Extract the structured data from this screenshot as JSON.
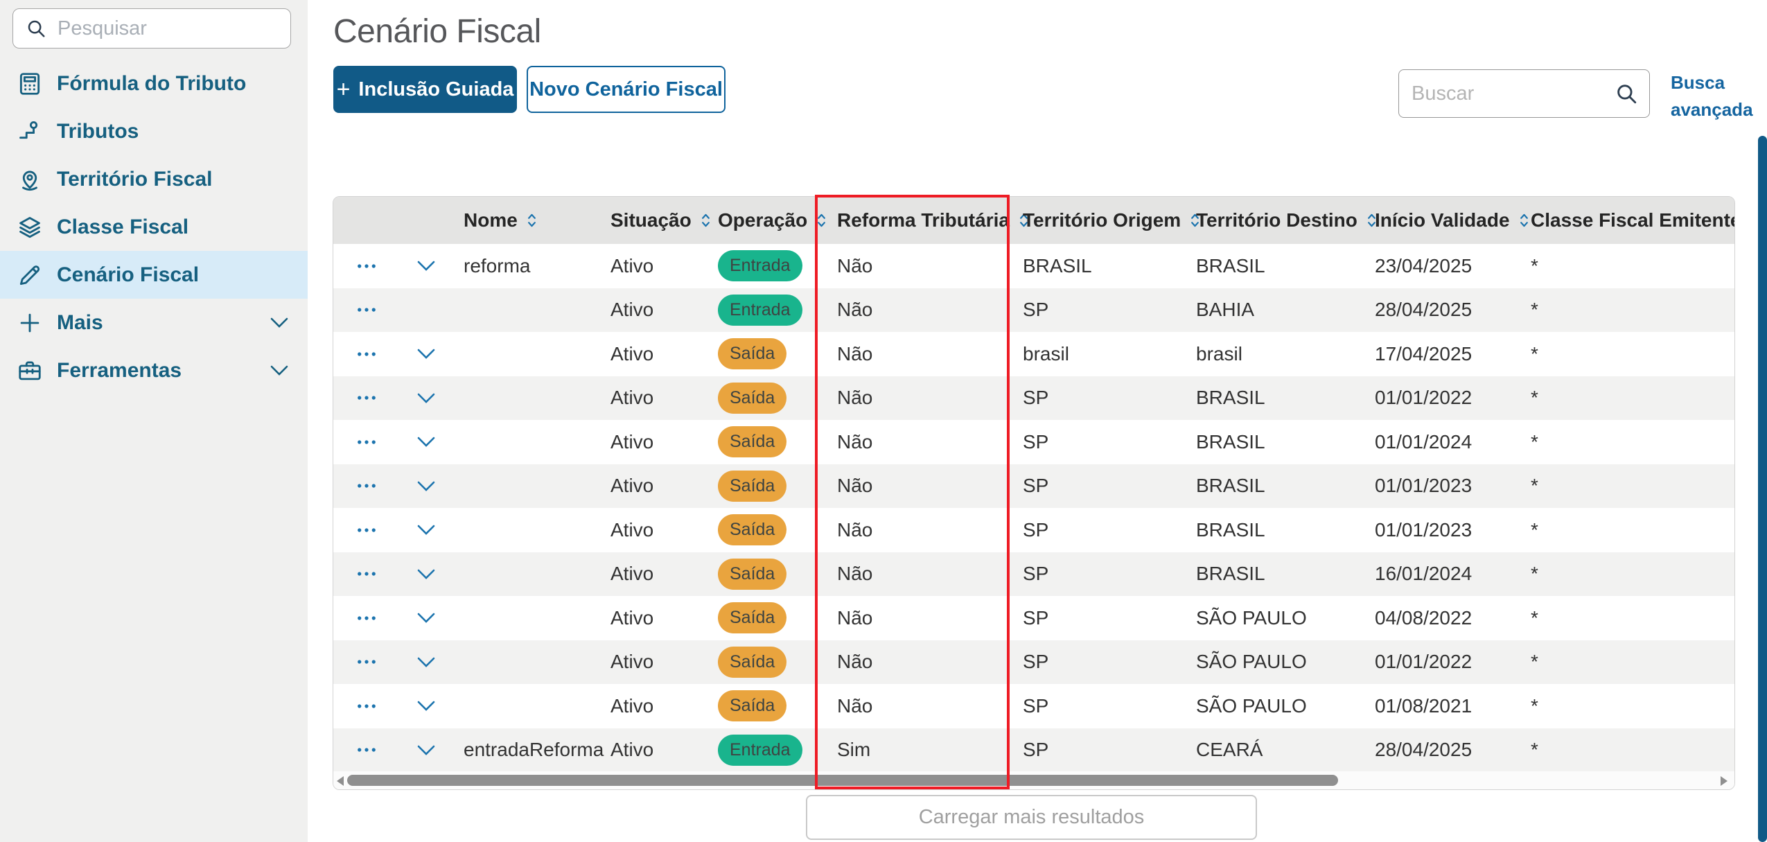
{
  "sidebar": {
    "search_placeholder": "Pesquisar",
    "items": [
      {
        "label": "Fórmula do Tributo",
        "icon": "calculator-icon",
        "selected": false,
        "expandable": false
      },
      {
        "label": "Tributos",
        "icon": "pin-flag-icon",
        "selected": false,
        "expandable": false
      },
      {
        "label": "Território Fiscal",
        "icon": "location-pin-icon",
        "selected": false,
        "expandable": false
      },
      {
        "label": "Classe Fiscal",
        "icon": "layers-icon",
        "selected": false,
        "expandable": false
      },
      {
        "label": "Cenário Fiscal",
        "icon": "pencil-icon",
        "selected": true,
        "expandable": false
      },
      {
        "label": "Mais",
        "icon": "plus-icon",
        "selected": false,
        "expandable": true
      },
      {
        "label": "Ferramentas",
        "icon": "toolbox-icon",
        "selected": false,
        "expandable": true
      }
    ]
  },
  "header": {
    "title": "Cenário Fiscal",
    "primary_button_plus": "+",
    "primary_button": "Inclusão Guiada",
    "secondary_button": "Novo Cenário Fiscal",
    "search_placeholder": "Buscar",
    "advanced_search_line1": "Busca",
    "advanced_search_line2": "avançada"
  },
  "table": {
    "columns": [
      {
        "key": "actions",
        "label": "",
        "sortable": false
      },
      {
        "key": "expander",
        "label": "",
        "sortable": false
      },
      {
        "key": "nome",
        "label": "Nome",
        "sortable": true
      },
      {
        "key": "situacao",
        "label": "Situação",
        "sortable": true
      },
      {
        "key": "operacao",
        "label": "Operação",
        "sortable": true
      },
      {
        "key": "reforma_tributaria",
        "label": "Reforma Tributária",
        "sortable": true
      },
      {
        "key": "territorio_origem",
        "label": "Território Origem",
        "sortable": true
      },
      {
        "key": "territorio_destino",
        "label": "Território Destino",
        "sortable": true
      },
      {
        "key": "inicio_validade",
        "label": "Início Validade",
        "sortable": true
      },
      {
        "key": "classe_fiscal_emitente",
        "label": "Classe Fiscal Emitente",
        "sortable": true
      }
    ],
    "badge_colors": {
      "Entrada": "#19b48d",
      "Saída": "#e9a43e"
    },
    "rows": [
      {
        "expandable": true,
        "nome": "reforma",
        "situacao": "Ativo",
        "operacao": "Entrada",
        "reforma_tributaria": "Não",
        "territorio_origem": "BRASIL",
        "territorio_destino": "BRASIL",
        "inicio_validade": "23/04/2025",
        "classe_fiscal_emitente": "*"
      },
      {
        "expandable": false,
        "nome": "",
        "situacao": "Ativo",
        "operacao": "Entrada",
        "reforma_tributaria": "Não",
        "territorio_origem": "SP",
        "territorio_destino": "BAHIA",
        "inicio_validade": "28/04/2025",
        "classe_fiscal_emitente": "*"
      },
      {
        "expandable": true,
        "nome": "",
        "situacao": "Ativo",
        "operacao": "Saída",
        "reforma_tributaria": "Não",
        "territorio_origem": "brasil",
        "territorio_destino": "brasil",
        "inicio_validade": "17/04/2025",
        "classe_fiscal_emitente": "*"
      },
      {
        "expandable": true,
        "nome": "",
        "situacao": "Ativo",
        "operacao": "Saída",
        "reforma_tributaria": "Não",
        "territorio_origem": "SP",
        "territorio_destino": "BRASIL",
        "inicio_validade": "01/01/2022",
        "classe_fiscal_emitente": "*"
      },
      {
        "expandable": true,
        "nome": "",
        "situacao": "Ativo",
        "operacao": "Saída",
        "reforma_tributaria": "Não",
        "territorio_origem": "SP",
        "territorio_destino": "BRASIL",
        "inicio_validade": "01/01/2024",
        "classe_fiscal_emitente": "*"
      },
      {
        "expandable": true,
        "nome": "",
        "situacao": "Ativo",
        "operacao": "Saída",
        "reforma_tributaria": "Não",
        "territorio_origem": "SP",
        "territorio_destino": "BRASIL",
        "inicio_validade": "01/01/2023",
        "classe_fiscal_emitente": "*"
      },
      {
        "expandable": true,
        "nome": "",
        "situacao": "Ativo",
        "operacao": "Saída",
        "reforma_tributaria": "Não",
        "territorio_origem": "SP",
        "territorio_destino": "BRASIL",
        "inicio_validade": "01/01/2023",
        "classe_fiscal_emitente": "*"
      },
      {
        "expandable": true,
        "nome": "",
        "situacao": "Ativo",
        "operacao": "Saída",
        "reforma_tributaria": "Não",
        "territorio_origem": "SP",
        "territorio_destino": "BRASIL",
        "inicio_validade": "16/01/2024",
        "classe_fiscal_emitente": "*"
      },
      {
        "expandable": true,
        "nome": "",
        "situacao": "Ativo",
        "operacao": "Saída",
        "reforma_tributaria": "Não",
        "territorio_origem": "SP",
        "territorio_destino": "SÃO PAULO",
        "inicio_validade": "04/08/2022",
        "classe_fiscal_emitente": "*"
      },
      {
        "expandable": true,
        "nome": "",
        "situacao": "Ativo",
        "operacao": "Saída",
        "reforma_tributaria": "Não",
        "territorio_origem": "SP",
        "territorio_destino": "SÃO PAULO",
        "inicio_validade": "01/01/2022",
        "classe_fiscal_emitente": "*"
      },
      {
        "expandable": true,
        "nome": "",
        "situacao": "Ativo",
        "operacao": "Saída",
        "reforma_tributaria": "Não",
        "territorio_origem": "SP",
        "territorio_destino": "SÃO PAULO",
        "inicio_validade": "01/08/2021",
        "classe_fiscal_emitente": "*"
      },
      {
        "expandable": true,
        "nome": "entradaReforma",
        "situacao": "Ativo",
        "operacao": "Entrada",
        "reforma_tributaria": "Sim",
        "territorio_origem": "SP",
        "territorio_destino": "CEARÁ",
        "inicio_validade": "28/04/2025",
        "classe_fiscal_emitente": "*"
      }
    ],
    "annotation": {
      "type": "highlight-box",
      "column": "Reforma Tributária",
      "color": "#ee1c25"
    }
  },
  "footer": {
    "load_more": "Carregar mais resultados"
  },
  "colors": {
    "sidebar_bg": "#f0f0ef",
    "sidebar_text": "#166080",
    "selected_item_bg": "#d7ebf8",
    "primary_button_bg": "#115a87",
    "secondary_button_blue": "#0f639c",
    "link_blue": "#1565a0",
    "table_header_bg": "#e4e4e3",
    "row_stripe": "#f2f2f1",
    "badge_entrada": "#19b48d",
    "badge_saida": "#e9a43e",
    "highlight_red": "#ee1c25",
    "scrollbar_blue": "#115a87",
    "scrollbar_gray": "#8f8f8f"
  }
}
